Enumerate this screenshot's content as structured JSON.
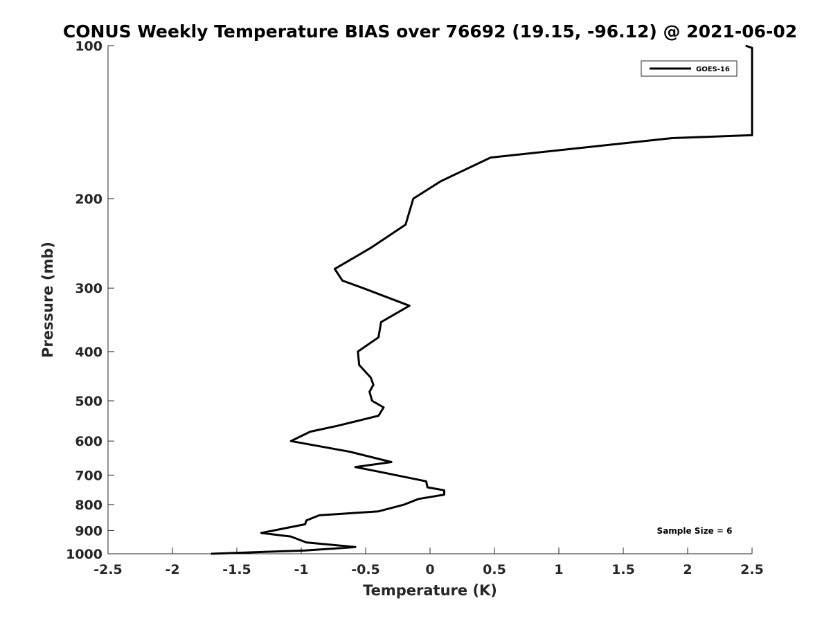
{
  "chart_data": {
    "type": "line",
    "title": "CONUS Weekly Temperature BIAS over 76692 (19.15, -96.12) @ 2021-06-02",
    "xlabel": "Temperature (K)",
    "ylabel": "Pressure (mb)",
    "xlim": [
      -2.5,
      2.5
    ],
    "ylim": [
      100,
      1000
    ],
    "y_scale": "log",
    "y_reversed": true,
    "grid": false,
    "legend_position": "top-right",
    "x_ticks": [
      "-2.5",
      "-2",
      "-1.5",
      "-1",
      "-0.5",
      "0",
      "0.5",
      "1",
      "1.5",
      "2",
      "2.5"
    ],
    "x_tick_values": [
      -2.5,
      -2,
      -1.5,
      -1,
      -0.5,
      0,
      0.5,
      1,
      1.5,
      2,
      2.5
    ],
    "y_ticks": [
      "100",
      "200",
      "300",
      "400",
      "500",
      "600",
      "700",
      "800",
      "900",
      "1000"
    ],
    "y_tick_values": [
      100,
      200,
      300,
      400,
      500,
      600,
      700,
      800,
      900,
      1000
    ],
    "series": [
      {
        "name": "GOES-16",
        "color": "#000000",
        "points": [
          {
            "t": 2.45,
            "p": 100
          },
          {
            "t": 2.5,
            "p": 101
          },
          {
            "t": 2.5,
            "p": 150
          },
          {
            "t": 1.88,
            "p": 152
          },
          {
            "t": 0.47,
            "p": 166
          },
          {
            "t": 0.08,
            "p": 185
          },
          {
            "t": -0.13,
            "p": 200
          },
          {
            "t": -0.19,
            "p": 225
          },
          {
            "t": -0.46,
            "p": 250
          },
          {
            "t": -0.74,
            "p": 275
          },
          {
            "t": -0.68,
            "p": 290
          },
          {
            "t": -0.52,
            "p": 300
          },
          {
            "t": -0.16,
            "p": 325
          },
          {
            "t": -0.38,
            "p": 350
          },
          {
            "t": -0.4,
            "p": 375
          },
          {
            "t": -0.56,
            "p": 400
          },
          {
            "t": -0.55,
            "p": 425
          },
          {
            "t": -0.46,
            "p": 450
          },
          {
            "t": -0.44,
            "p": 465
          },
          {
            "t": -0.47,
            "p": 480
          },
          {
            "t": -0.45,
            "p": 500
          },
          {
            "t": -0.36,
            "p": 515
          },
          {
            "t": -0.4,
            "p": 535
          },
          {
            "t": -0.72,
            "p": 560
          },
          {
            "t": -0.93,
            "p": 575
          },
          {
            "t": -1.08,
            "p": 600
          },
          {
            "t": -0.62,
            "p": 630
          },
          {
            "t": -0.3,
            "p": 660
          },
          {
            "t": -0.58,
            "p": 675
          },
          {
            "t": -0.39,
            "p": 690
          },
          {
            "t": -0.03,
            "p": 720
          },
          {
            "t": -0.02,
            "p": 740
          },
          {
            "t": 0.11,
            "p": 750
          },
          {
            "t": 0.11,
            "p": 765
          },
          {
            "t": -0.09,
            "p": 780
          },
          {
            "t": -0.2,
            "p": 800
          },
          {
            "t": -0.4,
            "p": 825
          },
          {
            "t": -0.86,
            "p": 840
          },
          {
            "t": -0.96,
            "p": 860
          },
          {
            "t": -0.97,
            "p": 875
          },
          {
            "t": -1.12,
            "p": 890
          },
          {
            "t": -1.31,
            "p": 910
          },
          {
            "t": -1.08,
            "p": 925
          },
          {
            "t": -0.96,
            "p": 950
          },
          {
            "t": -0.58,
            "p": 970
          },
          {
            "t": -0.97,
            "p": 985
          },
          {
            "t": -1.7,
            "p": 1000
          }
        ]
      }
    ],
    "annotations": [
      "Sample Size = 6"
    ]
  }
}
